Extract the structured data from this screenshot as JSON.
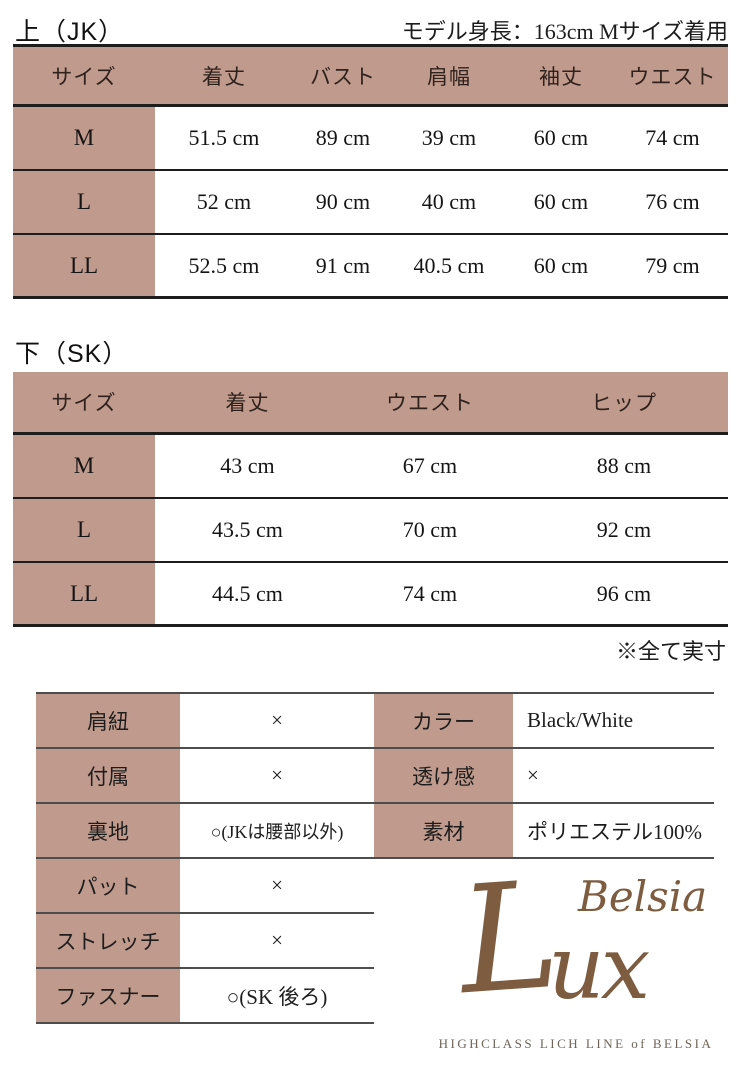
{
  "page": {
    "jk_title": "上（JK）",
    "sk_title": "下（SK）",
    "model_note": "モデル身長：163cm Mサイズ着用",
    "actual_size_note": "※全て実寸"
  },
  "jk_table": {
    "headers": [
      "サイズ",
      "着丈",
      "バスト",
      "肩幅",
      "袖丈",
      "ウエスト"
    ],
    "rows": [
      {
        "size": "M",
        "values": [
          "51.5 cm",
          "89 cm",
          "39 cm",
          "60 cm",
          "74 cm"
        ]
      },
      {
        "size": "L",
        "values": [
          "52 cm",
          "90 cm",
          "40 cm",
          "60 cm",
          "76 cm"
        ]
      },
      {
        "size": "LL",
        "values": [
          "52.5 cm",
          "91 cm",
          "40.5 cm",
          "60 cm",
          "79 cm"
        ]
      }
    ]
  },
  "sk_table": {
    "headers": [
      "サイズ",
      "着丈",
      "ウエスト",
      "ヒップ"
    ],
    "rows": [
      {
        "size": "M",
        "values": [
          "43 cm",
          "67 cm",
          "88 cm"
        ]
      },
      {
        "size": "L",
        "values": [
          "43.5 cm",
          "70 cm",
          "92 cm"
        ]
      },
      {
        "size": "LL",
        "values": [
          "44.5 cm",
          "74 cm",
          "96 cm"
        ]
      }
    ]
  },
  "spec_left": {
    "rows": [
      {
        "label": "肩紐",
        "value": "×"
      },
      {
        "label": "付属",
        "value": "×"
      },
      {
        "label": "裏地",
        "value": "○(JKは腰部以外)"
      },
      {
        "label": "パット",
        "value": "×"
      },
      {
        "label": "ストレッチ",
        "value": "×"
      },
      {
        "label": "ファスナー",
        "value": "○(SK 後ろ)"
      }
    ]
  },
  "spec_right": {
    "rows": [
      {
        "label": "カラー",
        "value": "Black/White"
      },
      {
        "label": "透け感",
        "value": "×"
      },
      {
        "label": "素材",
        "value": "ポリエステル100%"
      }
    ]
  },
  "logo": {
    "script_l": "L",
    "script_ux": "ux",
    "script_belsia": "Belsia",
    "tagline": "HIGHCLASS LICH LINE of BELSIA"
  },
  "colors": {
    "table_header_bg": "#c09b8d",
    "table_line_dark": "#1d1d1d",
    "spec_line_grey": "#4d4d4d",
    "logo_brown": "#7d5c40",
    "tagline_grey": "#6e6457"
  }
}
